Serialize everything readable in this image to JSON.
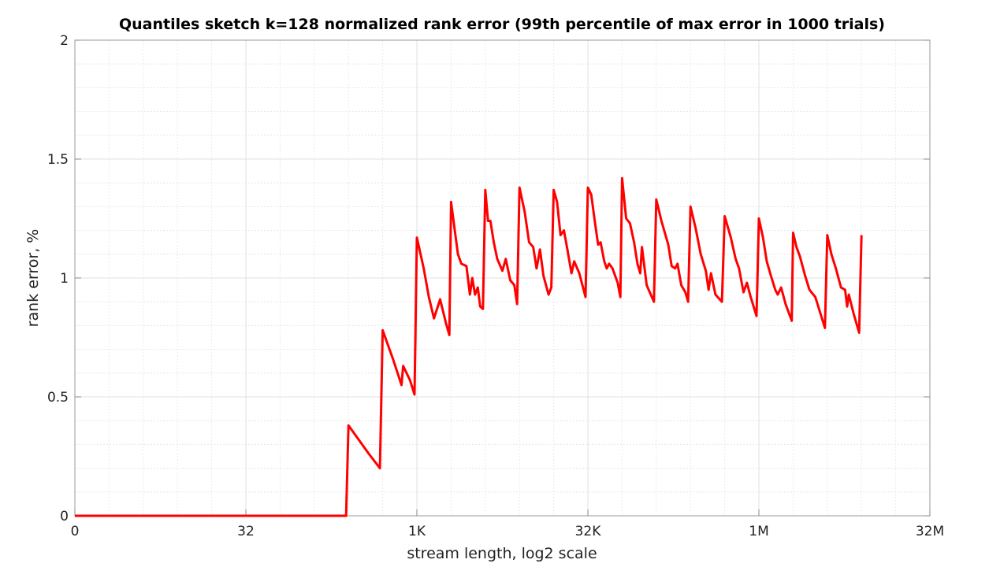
{
  "chart_data": {
    "type": "line",
    "title": "Quantiles sketch k=128 normalized rank error (99th percentile of max error in 1000 trials)",
    "xlabel": "stream length, log2 scale",
    "ylabel": "rank error, %",
    "xscale": "log2",
    "xlim_log2": [
      0,
      25
    ],
    "ylim": [
      0,
      2
    ],
    "grid": true,
    "x_ticks": [
      {
        "log2": 0,
        "label": "0"
      },
      {
        "log2": 5,
        "label": "32"
      },
      {
        "log2": 10,
        "label": "1K"
      },
      {
        "log2": 15,
        "label": "32K"
      },
      {
        "log2": 20,
        "label": "1M"
      },
      {
        "log2": 25,
        "label": "32M"
      }
    ],
    "y_ticks": [
      {
        "value": 0,
        "label": "0"
      },
      {
        "value": 0.5,
        "label": "0.5"
      },
      {
        "value": 1,
        "label": "1"
      },
      {
        "value": 1.5,
        "label": "1.5"
      },
      {
        "value": 2,
        "label": "2"
      }
    ],
    "series": [
      {
        "name": "rank error",
        "color": "#ff0000",
        "points_log2x": [
          [
            0,
            0
          ],
          [
            7.93,
            0
          ],
          [
            8.0,
            0.38
          ],
          [
            8.3,
            0.32
          ],
          [
            8.6,
            0.26
          ],
          [
            8.92,
            0.2
          ],
          [
            9.0,
            0.78
          ],
          [
            9.3,
            0.66
          ],
          [
            9.55,
            0.55
          ],
          [
            9.6,
            0.63
          ],
          [
            9.8,
            0.57
          ],
          [
            9.93,
            0.51
          ],
          [
            10,
            1.17
          ],
          [
            10.2,
            1.04
          ],
          [
            10.35,
            0.92
          ],
          [
            10.5,
            0.83
          ],
          [
            10.68,
            0.91
          ],
          [
            10.85,
            0.81
          ],
          [
            10.95,
            0.76
          ],
          [
            11,
            1.32
          ],
          [
            11.1,
            1.21
          ],
          [
            11.2,
            1.1
          ],
          [
            11.3,
            1.06
          ],
          [
            11.45,
            1.05
          ],
          [
            11.55,
            0.93
          ],
          [
            11.62,
            1.0
          ],
          [
            11.7,
            0.93
          ],
          [
            11.78,
            0.96
          ],
          [
            11.85,
            0.88
          ],
          [
            11.93,
            0.87
          ],
          [
            12,
            1.37
          ],
          [
            12.08,
            1.24
          ],
          [
            12.15,
            1.24
          ],
          [
            12.25,
            1.15
          ],
          [
            12.35,
            1.08
          ],
          [
            12.5,
            1.03
          ],
          [
            12.6,
            1.08
          ],
          [
            12.73,
            0.99
          ],
          [
            12.85,
            0.97
          ],
          [
            12.93,
            0.89
          ],
          [
            13,
            1.38
          ],
          [
            13.15,
            1.28
          ],
          [
            13.28,
            1.15
          ],
          [
            13.4,
            1.13
          ],
          [
            13.5,
            1.04
          ],
          [
            13.6,
            1.12
          ],
          [
            13.7,
            1.01
          ],
          [
            13.85,
            0.93
          ],
          [
            13.93,
            0.96
          ],
          [
            14,
            1.37
          ],
          [
            14.1,
            1.32
          ],
          [
            14.2,
            1.18
          ],
          [
            14.3,
            1.2
          ],
          [
            14.4,
            1.12
          ],
          [
            14.52,
            1.02
          ],
          [
            14.6,
            1.07
          ],
          [
            14.75,
            1.02
          ],
          [
            14.93,
            0.92
          ],
          [
            15,
            1.38
          ],
          [
            15.1,
            1.35
          ],
          [
            15.2,
            1.24
          ],
          [
            15.3,
            1.14
          ],
          [
            15.37,
            1.15
          ],
          [
            15.48,
            1.07
          ],
          [
            15.55,
            1.04
          ],
          [
            15.62,
            1.06
          ],
          [
            15.72,
            1.04
          ],
          [
            15.87,
            0.98
          ],
          [
            15.95,
            0.92
          ],
          [
            16,
            1.42
          ],
          [
            16.12,
            1.25
          ],
          [
            16.23,
            1.23
          ],
          [
            16.35,
            1.15
          ],
          [
            16.45,
            1.06
          ],
          [
            16.53,
            1.02
          ],
          [
            16.58,
            1.13
          ],
          [
            16.72,
            0.97
          ],
          [
            16.93,
            0.9
          ],
          [
            17,
            1.33
          ],
          [
            17.15,
            1.24
          ],
          [
            17.35,
            1.14
          ],
          [
            17.45,
            1.05
          ],
          [
            17.55,
            1.04
          ],
          [
            17.62,
            1.06
          ],
          [
            17.73,
            0.97
          ],
          [
            17.85,
            0.94
          ],
          [
            17.93,
            0.9
          ],
          [
            18,
            1.3
          ],
          [
            18.15,
            1.21
          ],
          [
            18.3,
            1.1
          ],
          [
            18.45,
            1.03
          ],
          [
            18.53,
            0.95
          ],
          [
            18.6,
            1.02
          ],
          [
            18.73,
            0.93
          ],
          [
            18.92,
            0.9
          ],
          [
            19,
            1.26
          ],
          [
            19.18,
            1.17
          ],
          [
            19.32,
            1.08
          ],
          [
            19.42,
            1.04
          ],
          [
            19.55,
            0.94
          ],
          [
            19.65,
            0.98
          ],
          [
            19.76,
            0.92
          ],
          [
            19.93,
            0.84
          ],
          [
            20,
            1.25
          ],
          [
            20.12,
            1.17
          ],
          [
            20.23,
            1.07
          ],
          [
            20.35,
            1.01
          ],
          [
            20.48,
            0.95
          ],
          [
            20.55,
            0.93
          ],
          [
            20.65,
            0.96
          ],
          [
            20.78,
            0.89
          ],
          [
            20.96,
            0.82
          ],
          [
            21,
            1.19
          ],
          [
            21.1,
            1.13
          ],
          [
            21.2,
            1.09
          ],
          [
            21.35,
            1.01
          ],
          [
            21.48,
            0.95
          ],
          [
            21.65,
            0.92
          ],
          [
            21.93,
            0.79
          ],
          [
            22,
            1.18
          ],
          [
            22.12,
            1.1
          ],
          [
            22.25,
            1.04
          ],
          [
            22.4,
            0.96
          ],
          [
            22.52,
            0.95
          ],
          [
            22.58,
            0.88
          ],
          [
            22.63,
            0.93
          ],
          [
            22.77,
            0.85
          ],
          [
            22.93,
            0.77
          ],
          [
            23,
            1.18
          ]
        ]
      }
    ]
  }
}
